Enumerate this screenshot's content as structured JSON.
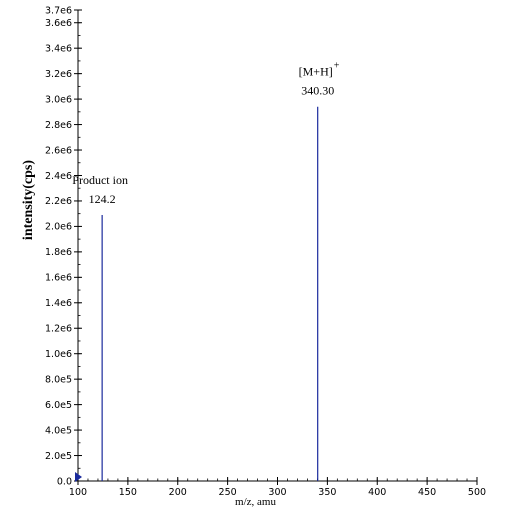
{
  "chart_data": {
    "type": "bar",
    "xlabel": "m/z, amu",
    "ylabel": "intensity(cps)",
    "xlim": [
      100,
      500
    ],
    "ylim": [
      0,
      3700000
    ],
    "x_ticks": [
      "100",
      "150",
      "200",
      "250",
      "300",
      "350",
      "400",
      "450",
      "500"
    ],
    "y_ticks": [
      "0.0",
      "2.0e5",
      "4.0e5",
      "6.0e5",
      "8.0e5",
      "1.0e6",
      "1.2e6",
      "1.4e6",
      "1.6e6",
      "1.8e6",
      "2.0e6",
      "2.2e6",
      "2.4e6",
      "2.6e6",
      "2.8e6",
      "3.0e6",
      "3.2e6",
      "3.4e6",
      "3.6e6",
      "3.7e6"
    ],
    "y_tick_values": [
      0,
      200000,
      400000,
      600000,
      800000,
      1000000,
      1200000,
      1400000,
      1600000,
      1800000,
      2000000,
      2200000,
      2400000,
      2600000,
      2800000,
      3000000,
      3200000,
      3400000,
      3600000,
      3700000
    ],
    "x_tick_values": [
      100,
      150,
      200,
      250,
      300,
      350,
      400,
      450,
      500
    ],
    "peaks": [
      {
        "x": 124.2,
        "y": 2090000,
        "label_top": "Product ion",
        "label_value": "124.2"
      },
      {
        "x": 340.3,
        "y": 2940000,
        "label_top": "[M+H]",
        "label_sup": "+",
        "label_value": "340.30"
      }
    ],
    "line_color": "#1a2a9c",
    "grid": false
  }
}
